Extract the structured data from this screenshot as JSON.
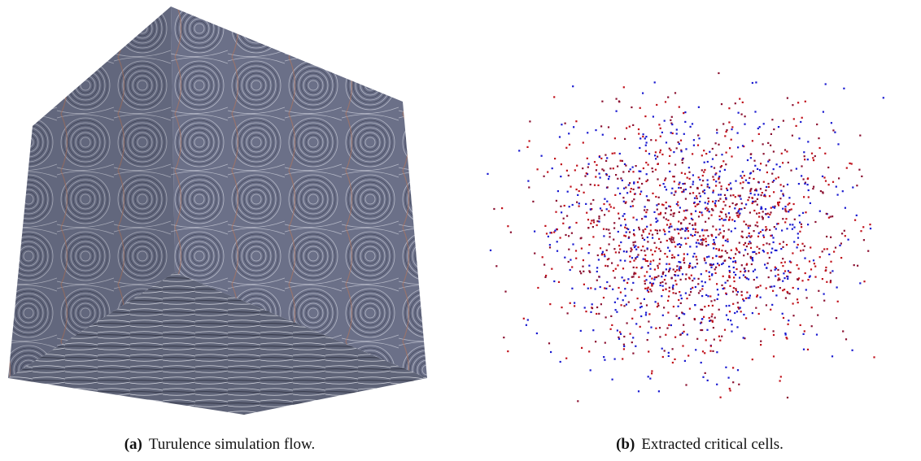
{
  "panels": [
    {
      "label": "(a)",
      "caption": "Turulence simulation flow."
    },
    {
      "label": "(b)",
      "caption": "Extracted critical cells."
    }
  ]
}
